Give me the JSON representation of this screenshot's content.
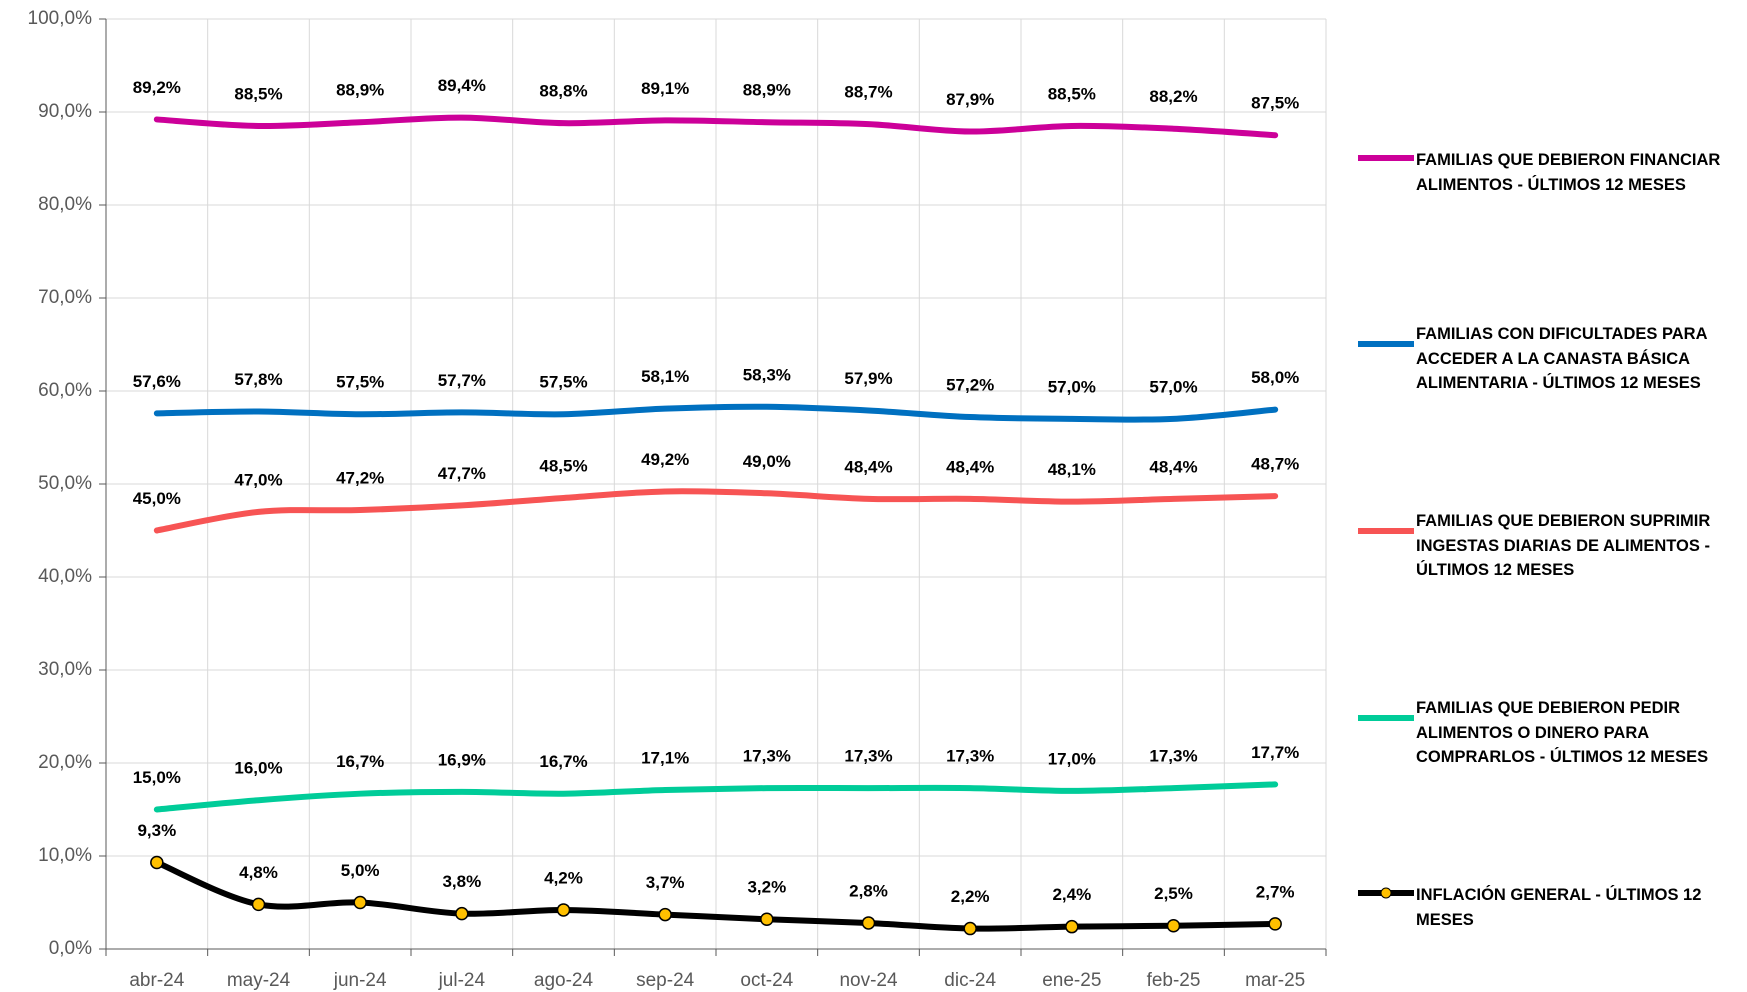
{
  "chart_data": {
    "type": "line",
    "categories": [
      "abr-24",
      "may-24",
      "jun-24",
      "jul-24",
      "ago-24",
      "sep-24",
      "oct-24",
      "nov-24",
      "dic-24",
      "ene-25",
      "feb-25",
      "mar-25"
    ],
    "ylim": [
      0,
      100
    ],
    "yticks": [
      {
        "value": 0,
        "label": "0,0%"
      },
      {
        "value": 10,
        "label": "10,0%"
      },
      {
        "value": 20,
        "label": "20,0%"
      },
      {
        "value": 30,
        "label": "30,0%"
      },
      {
        "value": 40,
        "label": "40,0%"
      },
      {
        "value": 50,
        "label": "50,0%"
      },
      {
        "value": 60,
        "label": "60,0%"
      },
      {
        "value": 70,
        "label": "70,0%"
      },
      {
        "value": 80,
        "label": "80,0%"
      },
      {
        "value": 90,
        "label": "90,0%"
      },
      {
        "value": 100,
        "label": "100,0%"
      }
    ],
    "grid": true,
    "legend": "right",
    "series": [
      {
        "name": "FAMILIAS QUE DEBIERON FINANCIAR ALIMENTOS - ÚLTIMOS 12 MESES",
        "color": "#cc0099",
        "values": [
          89.2,
          88.5,
          88.9,
          89.4,
          88.8,
          89.1,
          88.9,
          88.7,
          87.9,
          88.5,
          88.2,
          87.5
        ],
        "value_labels": [
          "89,2%",
          "88,5%",
          "88,9%",
          "89,4%",
          "88,8%",
          "89,1%",
          "88,9%",
          "88,7%",
          "87,9%",
          "88,5%",
          "88,2%",
          "87,5%"
        ]
      },
      {
        "name": "FAMILIAS CON DIFICULTADES PARA ACCEDER A LA CANASTA BÁSICA ALIMENTARIA - ÚLTIMOS 12 MESES",
        "color": "#0070c0",
        "values": [
          57.6,
          57.8,
          57.5,
          57.7,
          57.5,
          58.1,
          58.3,
          57.9,
          57.2,
          57.0,
          57.0,
          58.0
        ],
        "value_labels": [
          "57,6%",
          "57,8%",
          "57,5%",
          "57,7%",
          "57,5%",
          "58,1%",
          "58,3%",
          "57,9%",
          "57,2%",
          "57,0%",
          "57,0%",
          "58,0%"
        ]
      },
      {
        "name": "FAMILIAS QUE DEBIERON SUPRIMIR INGESTAS DIARIAS DE ALIMENTOS - ÚLTIMOS 12 MESES",
        "color": "#f75454",
        "values": [
          45.0,
          47.0,
          47.2,
          47.7,
          48.5,
          49.2,
          49.0,
          48.4,
          48.4,
          48.1,
          48.4,
          48.7
        ],
        "value_labels": [
          "45,0%",
          "47,0%",
          "47,2%",
          "47,7%",
          "48,5%",
          "49,2%",
          "49,0%",
          "48,4%",
          "48,4%",
          "48,1%",
          "48,4%",
          "48,7%"
        ]
      },
      {
        "name": "FAMILIAS QUE DEBIERON PEDIR ALIMENTOS O DINERO PARA COMPRARLOS - ÚLTIMOS 12 MESES",
        "color": "#00cc99",
        "values": [
          15.0,
          16.0,
          16.7,
          16.9,
          16.7,
          17.1,
          17.3,
          17.3,
          17.3,
          17.0,
          17.3,
          17.7
        ],
        "value_labels": [
          "15,0%",
          "16,0%",
          "16,7%",
          "16,9%",
          "16,7%",
          "17,1%",
          "17,3%",
          "17,3%",
          "17,3%",
          "17,0%",
          "17,3%",
          "17,7%"
        ]
      },
      {
        "name": "INFLACIÓN GENERAL - ÚLTIMOS 12 MESES",
        "color": "#000000",
        "marker_color": "#ffc000",
        "values": [
          9.3,
          4.8,
          5.0,
          3.8,
          4.2,
          3.7,
          3.2,
          2.8,
          2.2,
          2.4,
          2.5,
          2.7
        ],
        "value_labels": [
          "9,3%",
          "4,8%",
          "5,0%",
          "3,8%",
          "4,2%",
          "3,7%",
          "3,2%",
          "2,8%",
          "2,2%",
          "2,4%",
          "2,5%",
          "2,7%"
        ]
      }
    ]
  }
}
